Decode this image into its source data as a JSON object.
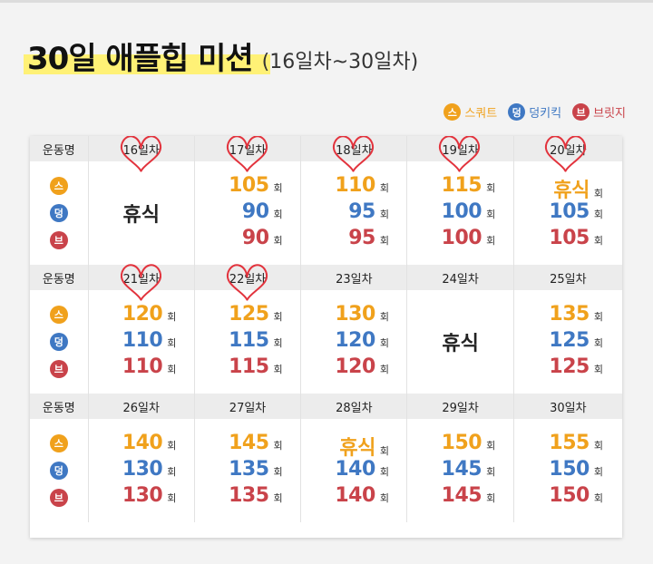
{
  "title": "30일 애플힙 미션",
  "subtitle": "(16일차~30일차)",
  "legend": [
    {
      "badge": "스",
      "label": "스쿼트",
      "color": "#f0a11c"
    },
    {
      "badge": "덩",
      "label": "덩키킥",
      "color": "#3f78c3"
    },
    {
      "badge": "브",
      "label": "브릿지",
      "color": "#c9434a"
    }
  ],
  "header_label": "운동명",
  "unit": "회",
  "rest_label": "휴식",
  "weeks": [
    {
      "days": [
        {
          "day": "16일차",
          "rest": true
        },
        {
          "day": "17일차",
          "values": [
            105,
            90,
            90
          ]
        },
        {
          "day": "18일차",
          "values": [
            110,
            95,
            95
          ]
        },
        {
          "day": "19일차",
          "values": [
            115,
            100,
            100
          ]
        },
        {
          "day": "20일차",
          "values": [
            "휴식",
            105,
            105
          ]
        }
      ]
    },
    {
      "days": [
        {
          "day": "21일차",
          "values": [
            120,
            110,
            110
          ]
        },
        {
          "day": "22일차",
          "values": [
            125,
            115,
            115
          ]
        },
        {
          "day": "23일차",
          "values": [
            130,
            120,
            120
          ]
        },
        {
          "day": "24일차",
          "rest": true
        },
        {
          "day": "25일차",
          "values": [
            135,
            125,
            125
          ]
        }
      ]
    },
    {
      "days": [
        {
          "day": "26일차",
          "values": [
            140,
            130,
            130
          ]
        },
        {
          "day": "27일차",
          "values": [
            145,
            135,
            135
          ]
        },
        {
          "day": "28일차",
          "values": [
            "휴식",
            140,
            140
          ]
        },
        {
          "day": "29일차",
          "values": [
            150,
            145,
            145
          ]
        },
        {
          "day": "30일차",
          "values": [
            155,
            150,
            150
          ]
        }
      ]
    }
  ],
  "heart_color": "#e2333d",
  "checked_days": [
    "16일차",
    "17일차",
    "18일차",
    "19일차",
    "20일차",
    "21일차",
    "22일차"
  ]
}
